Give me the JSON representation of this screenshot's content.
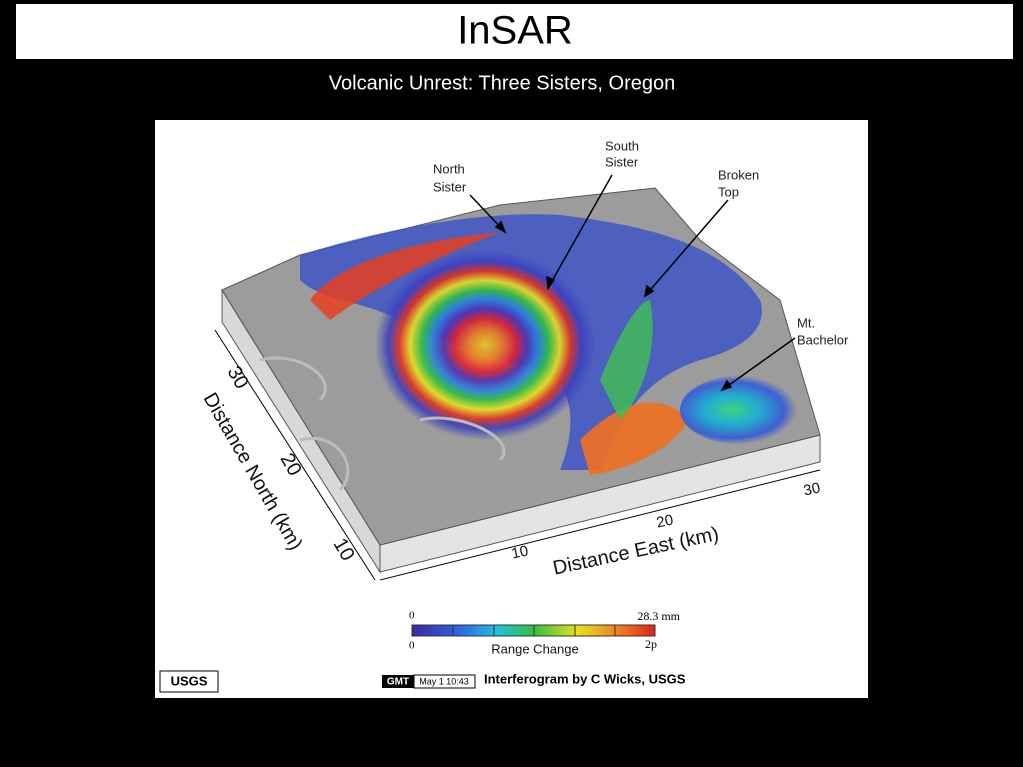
{
  "header": {
    "title": "InSAR",
    "subtitle": "Volcanic Unrest:  Three Sisters, Oregon"
  },
  "figure": {
    "annotations": [
      {
        "lines": [
          "North",
          "Sister"
        ]
      },
      {
        "lines": [
          "South",
          "Sister"
        ]
      },
      {
        "lines": [
          "Broken",
          "Top"
        ]
      },
      {
        "lines": [
          "Mt.",
          "Bachelor"
        ]
      }
    ],
    "north_axis": {
      "label": "Distance North (km)",
      "ticks": [
        "30",
        "20",
        "10"
      ]
    },
    "east_axis": {
      "label": "Distance East (km)",
      "ticks": [
        "10",
        "20",
        "30"
      ]
    },
    "colorbar": {
      "top_left": "0",
      "top_right": "28.3 mm",
      "bottom_left": "0",
      "bottom_right": "2p",
      "label": "Range Change"
    },
    "logo": "USGS",
    "stamp": {
      "tag": "GMT",
      "time": "May 1 10:43"
    },
    "credit": "Interferogram by C Wicks, USGS"
  }
}
